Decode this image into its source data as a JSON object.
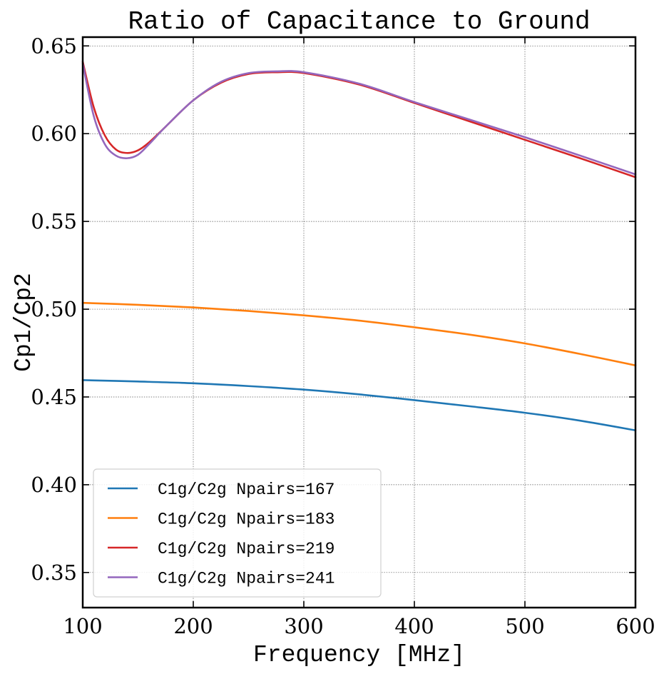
{
  "chart_data": {
    "type": "line",
    "title": "Ratio of Capacitance to Ground",
    "xlabel": "Frequency [MHz]",
    "ylabel": "Cp1/Cp2",
    "xlim": [
      100,
      600
    ],
    "ylim": [
      0.33,
      0.655
    ],
    "xticks": [
      100,
      200,
      300,
      400,
      500,
      600
    ],
    "xtick_labels": [
      "100",
      "200",
      "300",
      "400",
      "500",
      "600"
    ],
    "yticks": [
      0.35,
      0.4,
      0.45,
      0.5,
      0.55,
      0.6,
      0.65
    ],
    "ytick_labels": [
      "0.35",
      "0.40",
      "0.45",
      "0.50",
      "0.55",
      "0.60",
      "0.65"
    ],
    "grid": true,
    "legend_position": "lower-left",
    "series": [
      {
        "name": "C1g/C2g Npairs=167",
        "color": "#1f77b4",
        "x": [
          100,
          150,
          200,
          250,
          300,
          350,
          400,
          450,
          500,
          550,
          600
        ],
        "y": [
          0.4596,
          0.4588,
          0.4578,
          0.4562,
          0.4542,
          0.4515,
          0.4482,
          0.4447,
          0.441,
          0.4365,
          0.431
        ]
      },
      {
        "name": "C1g/C2g Npairs=183",
        "color": "#ff7f0e",
        "x": [
          100,
          150,
          200,
          250,
          300,
          350,
          400,
          450,
          500,
          550,
          600
        ],
        "y": [
          0.5036,
          0.5025,
          0.501,
          0.499,
          0.4965,
          0.4935,
          0.4897,
          0.4855,
          0.4805,
          0.4745,
          0.468
        ]
      },
      {
        "name": "C1g/C2g Npairs=219",
        "color": "#d62728",
        "x": [
          100,
          110,
          120,
          130,
          140,
          150,
          160,
          175,
          200,
          225,
          250,
          275,
          300,
          350,
          400,
          450,
          500,
          550,
          600
        ],
        "y": [
          0.641,
          0.615,
          0.599,
          0.591,
          0.589,
          0.5905,
          0.595,
          0.604,
          0.619,
          0.629,
          0.634,
          0.635,
          0.6345,
          0.628,
          0.6175,
          0.607,
          0.5965,
          0.586,
          0.5752
        ]
      },
      {
        "name": "C1g/C2g Npairs=241",
        "color": "#9467bd",
        "x": [
          100,
          110,
          120,
          130,
          140,
          150,
          160,
          175,
          200,
          225,
          250,
          275,
          300,
          350,
          400,
          450,
          500,
          550,
          600
        ],
        "y": [
          0.64,
          0.61,
          0.594,
          0.5875,
          0.586,
          0.588,
          0.594,
          0.604,
          0.619,
          0.6295,
          0.6345,
          0.6355,
          0.635,
          0.6285,
          0.618,
          0.608,
          0.598,
          0.5875,
          0.5768
        ]
      }
    ]
  }
}
